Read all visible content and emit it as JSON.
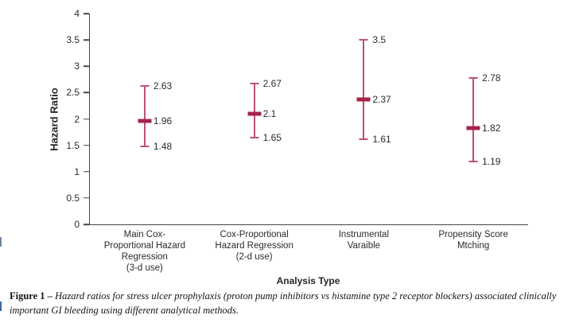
{
  "figure": {
    "caption_prefix": "Figure 1 –",
    "caption_text": "Hazard ratios for stress ulcer prophylaxis (proton pump inhibitors vs histamine type 2 receptor blockers) associated clinically important GI bleeding using different analytical methods."
  },
  "chart_data": {
    "type": "errorbar",
    "title": "",
    "ylabel": "Hazard Ratio",
    "xlabel": "Analysis Type",
    "ylim": [
      0,
      4
    ],
    "grid": false,
    "legend": null,
    "colors": {
      "marker": "#a62449",
      "whisker": "#bb5272",
      "axis": "#464646"
    },
    "yticks": {
      "values": [
        0,
        0.5,
        1,
        1.5,
        2,
        2.5,
        3,
        3.5,
        4
      ],
      "labels": [
        "0",
        "0.5",
        "1",
        "1.5",
        "2",
        "2.5",
        "3",
        "3.5",
        "4"
      ]
    },
    "categories": [
      "Main Cox-Proportional Hazard Regression (3-d use)",
      "Cox-Proportional Hazard Regression (2-d use)",
      "Instrumental Varaible",
      "Propensity Score Mtching"
    ],
    "points": [
      {
        "category_lines": [
          "Main Cox-",
          "Proportional Hazard",
          "Regression",
          "(3-d use)"
        ],
        "center": 1.96,
        "low": 1.48,
        "high": 2.63,
        "center_label": "1.96",
        "low_label": "1.48",
        "high_label": "2.63"
      },
      {
        "category_lines": [
          "Cox-Proportional",
          "Hazard Regression",
          "(2-d use)"
        ],
        "center": 2.1,
        "low": 1.65,
        "high": 2.67,
        "center_label": "2.1",
        "low_label": "1.65",
        "high_label": "2.67"
      },
      {
        "category_lines": [
          "Instrumental",
          "Varaible"
        ],
        "center": 2.37,
        "low": 1.61,
        "high": 3.5,
        "center_label": "2.37",
        "low_label": "1.61",
        "high_label": "3.5"
      },
      {
        "category_lines": [
          "Propensity Score",
          "Mtching"
        ],
        "center": 1.82,
        "low": 1.19,
        "high": 2.78,
        "center_label": "1.82",
        "low_label": "1.19",
        "high_label": "2.78"
      }
    ]
  }
}
